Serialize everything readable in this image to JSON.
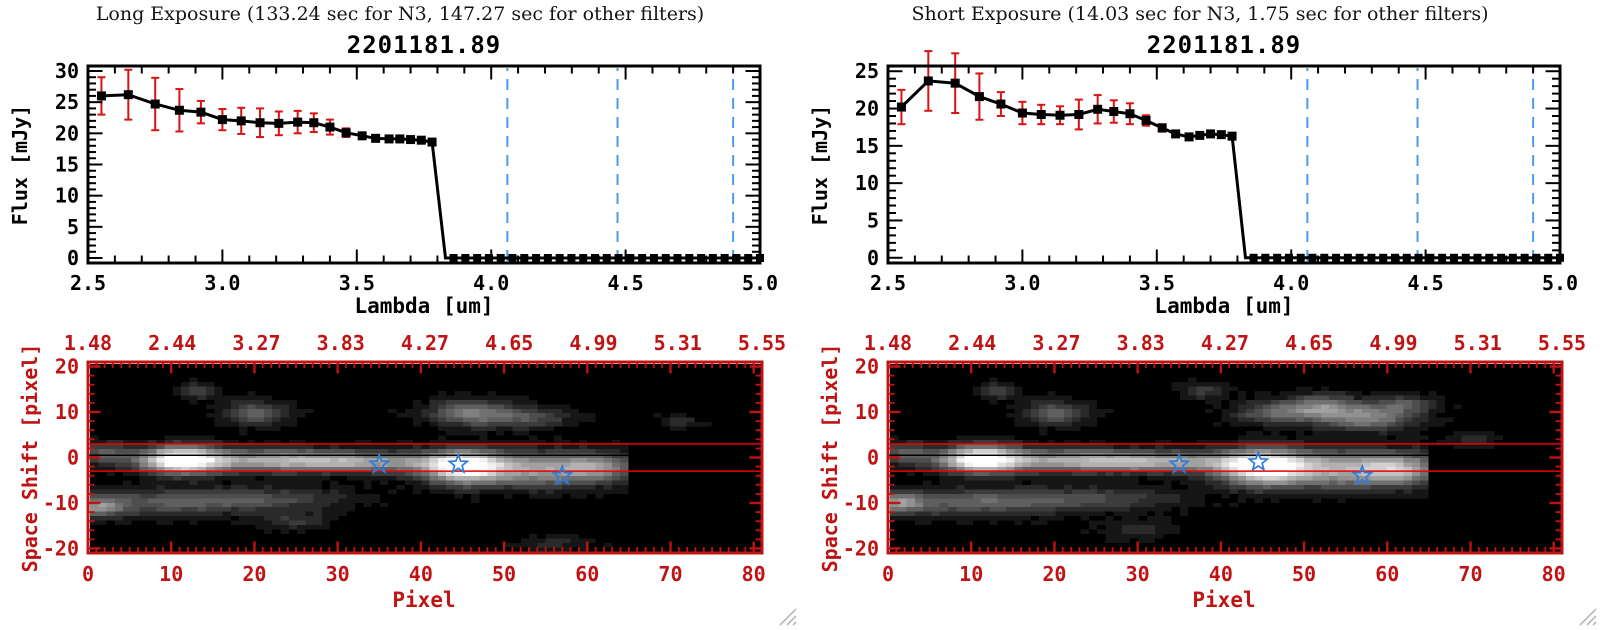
{
  "colors": {
    "axis_red": "#c01414",
    "error_red": "#db1212",
    "aperture_red": "#ee0000",
    "blue_dashed": "#4d9ce8",
    "star_blue": "#2e7cd6",
    "frame_black": "#000000",
    "header_text": "#141414",
    "grip_gray": "#b9b9b9",
    "background": "#ffffff"
  },
  "panels": [
    {
      "header": "Long Exposure (133.24 sec for N3, 147.27 sec for other filters)",
      "title": "2201181.89",
      "spectrum": 0,
      "image": 1
    },
    {
      "header": "Short Exposure (14.03 sec for N3, 1.75 sec for other filters)",
      "title": "2201181.89",
      "spectrum": 2,
      "image": 3
    }
  ],
  "chart_data": [
    {
      "type": "line",
      "panel": "Long Exposure",
      "title": "2201181.89",
      "xlabel": "Lambda [um]",
      "ylabel": "Flux [mJy]",
      "xlim": [
        2.5,
        5.0
      ],
      "ylim": [
        -0.8,
        30.8
      ],
      "xticks": [
        2.5,
        3.0,
        3.5,
        4.0,
        4.5,
        5.0
      ],
      "xtick_labels": [
        "2.5",
        "3.0",
        "3.5",
        "4.0",
        "4.5",
        "5.0"
      ],
      "yticks": [
        0,
        5,
        10,
        15,
        20,
        25,
        30
      ],
      "ytick_labels": [
        "0",
        "5",
        "10",
        "15",
        "20",
        "25",
        "30"
      ],
      "x": [
        2.55,
        2.65,
        2.75,
        2.84,
        2.92,
        3.0,
        3.07,
        3.14,
        3.21,
        3.28,
        3.34,
        3.4,
        3.46,
        3.52,
        3.57,
        3.62,
        3.66,
        3.7,
        3.74,
        3.78
      ],
      "y": [
        26.0,
        26.2,
        24.7,
        23.7,
        23.4,
        22.2,
        22.0,
        21.7,
        21.6,
        21.8,
        21.7,
        21.0,
        20.1,
        19.6,
        19.2,
        19.1,
        19.1,
        19.0,
        18.9,
        18.6
      ],
      "yerr": [
        3.0,
        4.0,
        4.2,
        3.4,
        1.8,
        1.7,
        2.1,
        2.3,
        1.9,
        1.8,
        1.5,
        1.2,
        0.7,
        0.45,
        0.4,
        0.35,
        0.3,
        0.3,
        0.3,
        0.45
      ],
      "drop_x": 3.83,
      "zero_tail": {
        "x_start": 3.86,
        "x_end": 5.0,
        "n": 27
      },
      "red_zero_line_from": 3.83,
      "blue_dashed_x": [
        4.06,
        4.47,
        4.9
      ]
    },
    {
      "type": "heatmap",
      "panel": "Long Exposure",
      "xlabel": "Pixel",
      "ylabel": "Space Shift [pixel]",
      "xlim": [
        0,
        81
      ],
      "ylim": [
        -21,
        21
      ],
      "xticks": [
        0,
        10,
        20,
        30,
        40,
        50,
        60,
        70,
        80
      ],
      "xtick_labels": [
        "0",
        "10",
        "20",
        "30",
        "40",
        "50",
        "60",
        "70",
        "80"
      ],
      "yticks": [
        20,
        10,
        0,
        -10,
        -20
      ],
      "ytick_labels": [
        "20",
        "10",
        "0",
        "-10",
        "-20"
      ],
      "top_axis_labels": [
        "1.48",
        "2.44",
        "3.27",
        "3.83",
        "4.27",
        "4.65",
        "4.99",
        "5.31",
        "5.55"
      ],
      "aperture_lines_y": [
        3,
        -3
      ],
      "center_line_y": 0.5,
      "stars": [
        [
          35,
          -1.5
        ],
        [
          44.5,
          -1.5
        ],
        [
          57,
          -4
        ]
      ],
      "band_cutoff_x": 64.5,
      "blobs": [
        [
          11,
          -0.5,
          3.2,
          2.0,
          1.05,
          1
        ],
        [
          22,
          -0.5,
          9,
          1.7,
          0.5,
          1
        ],
        [
          34,
          -1,
          9,
          1.5,
          0.42,
          1
        ],
        [
          45,
          -2,
          3.2,
          2.4,
          0.9,
          1
        ],
        [
          54,
          -2.5,
          6.5,
          2.6,
          0.55,
          1
        ],
        [
          61,
          -2,
          3,
          2.0,
          0.35,
          1
        ],
        [
          9,
          -10,
          8,
          2.0,
          0.3,
          0
        ],
        [
          22,
          -9,
          7,
          1.7,
          0.2,
          0
        ],
        [
          1,
          -11,
          2,
          1.5,
          0.4,
          0
        ],
        [
          20,
          10,
          2.5,
          1.8,
          0.35,
          0
        ],
        [
          46,
          10,
          3.5,
          2.0,
          0.42,
          0
        ],
        [
          53,
          9,
          3.5,
          1.6,
          0.25,
          0
        ],
        [
          13,
          15,
          1.4,
          1.3,
          0.22,
          0
        ],
        [
          25,
          -14,
          3,
          1.4,
          0.16,
          0
        ],
        [
          2,
          1,
          2,
          1.6,
          0.3,
          0
        ],
        [
          71,
          8,
          1.6,
          1.1,
          0.14,
          0
        ],
        [
          56,
          -19,
          3,
          1.2,
          0.12,
          0
        ]
      ]
    },
    {
      "type": "line",
      "panel": "Short Exposure",
      "title": "2201181.89",
      "xlabel": "Lambda [um]",
      "ylabel": "Flux [mJy]",
      "xlim": [
        2.5,
        5.0
      ],
      "ylim": [
        -0.7,
        25.7
      ],
      "xticks": [
        2.5,
        3.0,
        3.5,
        4.0,
        4.5,
        5.0
      ],
      "xtick_labels": [
        "2.5",
        "3.0",
        "3.5",
        "4.0",
        "4.5",
        "5.0"
      ],
      "yticks": [
        0,
        5,
        10,
        15,
        20,
        25
      ],
      "ytick_labels": [
        "0",
        "5",
        "10",
        "15",
        "20",
        "25"
      ],
      "x": [
        2.55,
        2.65,
        2.75,
        2.84,
        2.92,
        3.0,
        3.07,
        3.14,
        3.21,
        3.28,
        3.34,
        3.4,
        3.46,
        3.52,
        3.57,
        3.62,
        3.66,
        3.7,
        3.74,
        3.78
      ],
      "y": [
        20.2,
        23.7,
        23.4,
        21.6,
        20.6,
        19.4,
        19.2,
        19.1,
        19.2,
        19.9,
        19.6,
        19.3,
        18.4,
        17.4,
        16.6,
        16.2,
        16.4,
        16.6,
        16.5,
        16.3
      ],
      "yerr": [
        2.3,
        4.0,
        4.0,
        3.1,
        1.6,
        1.5,
        1.3,
        1.2,
        2.0,
        1.9,
        1.5,
        1.4,
        0.7,
        0.5,
        0.4,
        0.35,
        0.3,
        0.3,
        0.35,
        0.3
      ],
      "drop_x": 3.83,
      "zero_tail": {
        "x_start": 3.86,
        "x_end": 5.0,
        "n": 27
      },
      "red_zero_line_from": 3.83,
      "blue_dashed_x": [
        4.06,
        4.47,
        4.9
      ]
    },
    {
      "type": "heatmap",
      "panel": "Short Exposure",
      "xlabel": "Pixel",
      "ylabel": "Space Shift [pixel]",
      "xlim": [
        0,
        81
      ],
      "ylim": [
        -21,
        21
      ],
      "xticks": [
        0,
        10,
        20,
        30,
        40,
        50,
        60,
        70,
        80
      ],
      "xtick_labels": [
        "0",
        "10",
        "20",
        "30",
        "40",
        "50",
        "60",
        "70",
        "80"
      ],
      "yticks": [
        20,
        10,
        0,
        -10,
        -20
      ],
      "ytick_labels": [
        "20",
        "10",
        "0",
        "-10",
        "-20"
      ],
      "top_axis_labels": [
        "1.48",
        "2.44",
        "3.27",
        "3.83",
        "4.27",
        "4.65",
        "4.99",
        "5.31",
        "5.55"
      ],
      "aperture_lines_y": [
        3,
        -3
      ],
      "center_line_y": 0.5,
      "stars": [
        [
          35,
          -1.5
        ],
        [
          44.5,
          -1
        ],
        [
          57,
          -4
        ]
      ],
      "band_cutoff_x": 64.5,
      "blobs": [
        [
          11,
          -0.3,
          3.2,
          2.0,
          1.0,
          1
        ],
        [
          22,
          -0.5,
          9,
          1.7,
          0.5,
          1
        ],
        [
          34,
          -1,
          9,
          1.5,
          0.45,
          1
        ],
        [
          45,
          -2,
          3.5,
          2.6,
          0.95,
          1
        ],
        [
          55,
          -2.5,
          7,
          2.8,
          0.6,
          1
        ],
        [
          61,
          -2.5,
          3,
          2.2,
          0.4,
          1
        ],
        [
          9,
          -10,
          8,
          2.0,
          0.32,
          0
        ],
        [
          24,
          -9,
          8,
          1.8,
          0.22,
          0
        ],
        [
          1,
          -10,
          2,
          1.6,
          0.42,
          0
        ],
        [
          20,
          10,
          2.5,
          1.8,
          0.35,
          0
        ],
        [
          46,
          10,
          3.0,
          1.8,
          0.3,
          0
        ],
        [
          13,
          15,
          1.4,
          1.3,
          0.22,
          0
        ],
        [
          52,
          11,
          3.0,
          2.0,
          0.5,
          0
        ],
        [
          58,
          9,
          3.5,
          2.0,
          0.45,
          0
        ],
        [
          62,
          12,
          2.5,
          1.4,
          0.28,
          0
        ],
        [
          38,
          15,
          2,
          1.2,
          0.18,
          0
        ],
        [
          30,
          -16,
          3,
          1.4,
          0.15,
          0
        ],
        [
          2,
          1,
          2,
          1.6,
          0.3,
          0
        ],
        [
          70,
          4,
          2,
          1.2,
          0.15,
          0
        ]
      ]
    }
  ]
}
